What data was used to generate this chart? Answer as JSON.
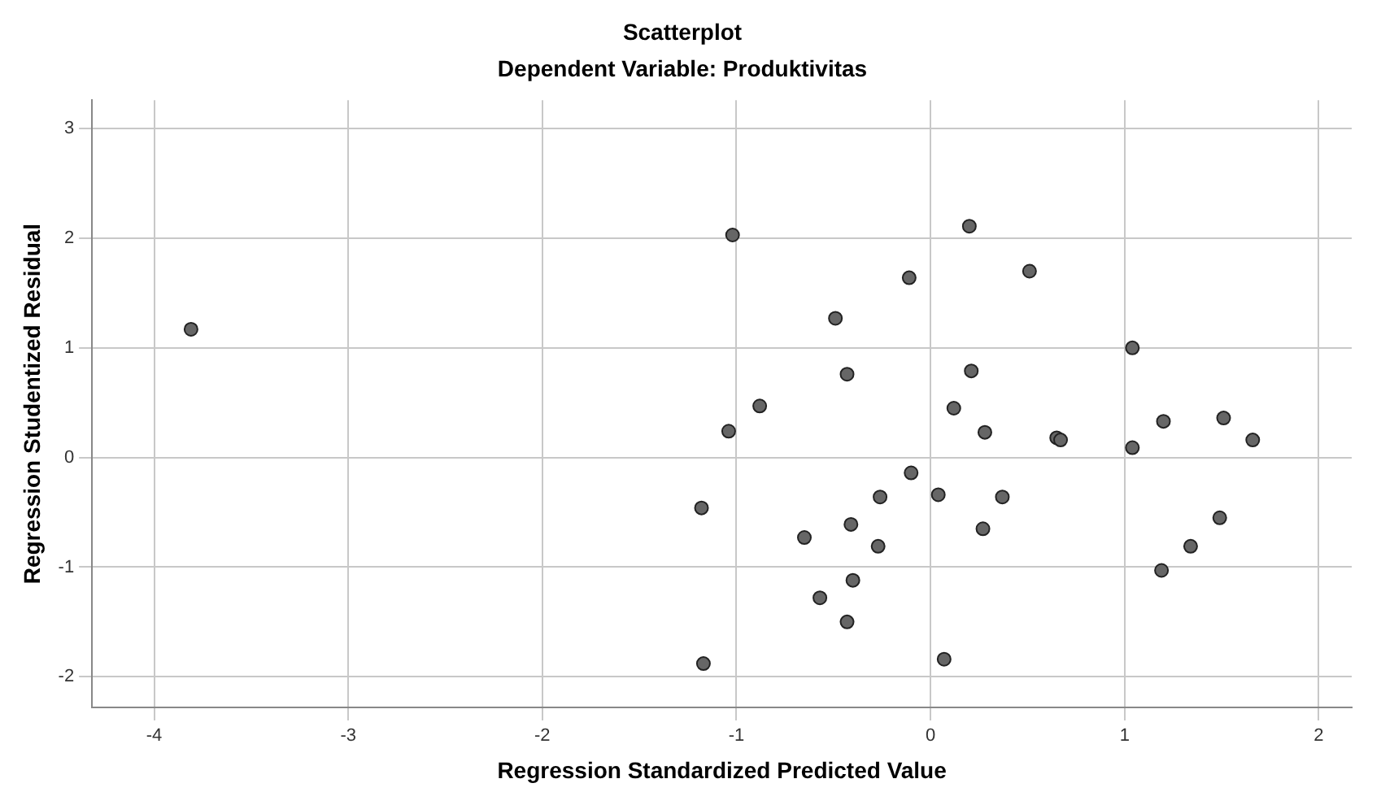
{
  "chart_data": {
    "type": "scatter",
    "title": "Scatterplot",
    "subtitle": "Dependent Variable: Produktivitas",
    "xlabel": "Regression Standardized Predicted Value",
    "ylabel": "Regression Studentized Residual",
    "x": [
      -3.81,
      -1.02,
      0.2,
      -0.11,
      0.51,
      -0.49,
      1.04,
      -0.43,
      0.21,
      -0.88,
      0.12,
      -1.04,
      0.28,
      0.65,
      0.67,
      1.04,
      1.2,
      1.51,
      1.66,
      -0.1,
      -0.26,
      0.04,
      0.37,
      -1.18,
      -0.41,
      -0.65,
      -0.27,
      0.27,
      1.49,
      1.34,
      1.19,
      -0.4,
      -0.57,
      -0.43,
      -1.17,
      0.07
    ],
    "series": [
      {
        "color": "#666666",
        "values": [
          1.17,
          2.03,
          2.11,
          1.64,
          1.7,
          1.27,
          1.0,
          0.76,
          0.79,
          0.47,
          0.45,
          0.24,
          0.23,
          0.18,
          0.16,
          0.09,
          0.33,
          0.36,
          0.16,
          -0.14,
          -0.36,
          -0.34,
          -0.36,
          -0.46,
          -0.61,
          -0.73,
          -0.81,
          -0.65,
          -0.55,
          -0.81,
          -1.03,
          -1.12,
          -1.28,
          -1.5,
          -1.88,
          -1.84
        ]
      }
    ],
    "xlim": [
      -4.32,
      2.17
    ],
    "ylim": [
      -2.28,
      3.26
    ],
    "xticks": [
      -4,
      -3,
      -2,
      -1,
      0,
      1,
      2
    ],
    "yticks": [
      -2,
      -1,
      0,
      1,
      2,
      3
    ],
    "grid": true,
    "marker": "circle",
    "legend": false
  }
}
